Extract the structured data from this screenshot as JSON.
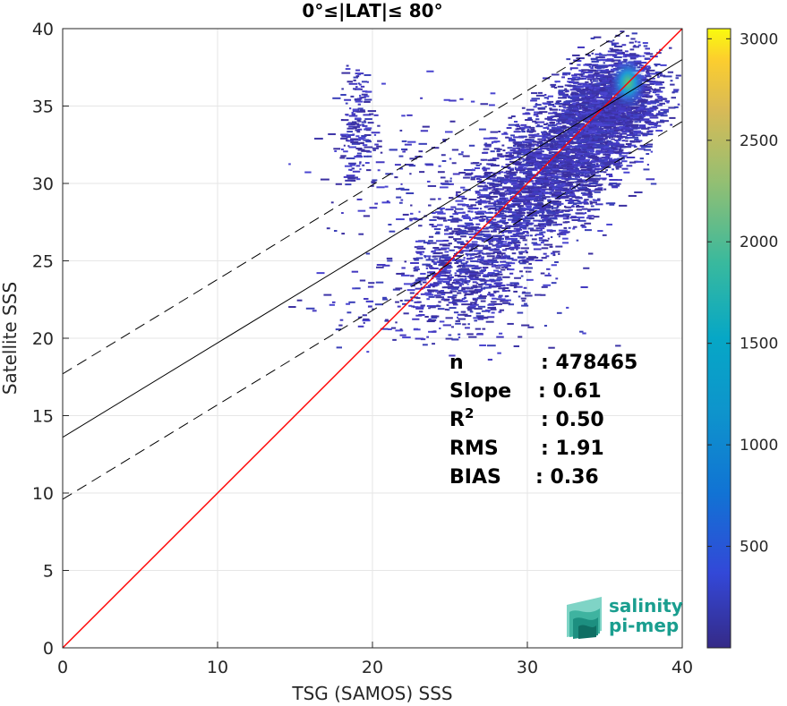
{
  "chart_data": {
    "type": "heatmap",
    "title": "0°≤|LAT|≤ 80°",
    "xlabel": "TSG (SAMOS) SSS",
    "ylabel": "Satellite SSS",
    "xlim": [
      0,
      40
    ],
    "ylim": [
      0,
      40
    ],
    "xticks": [
      "0",
      "10",
      "20",
      "30",
      "40"
    ],
    "yticks": [
      "0",
      "5",
      "10",
      "15",
      "20",
      "25",
      "30",
      "35",
      "40"
    ],
    "grid": true,
    "colorbar": {
      "range": [
        0,
        3050
      ],
      "ticks": [
        "500",
        "1000",
        "1500",
        "2000",
        "2500",
        "3000"
      ],
      "colormap": "parula"
    },
    "lines": [
      {
        "role": "one-to-one",
        "color": "#ff0000",
        "style": "solid",
        "intercept": 0,
        "slope": 1
      },
      {
        "role": "regression",
        "color": "#000000",
        "style": "solid",
        "intercept": 13.6,
        "slope": 0.61
      },
      {
        "role": "regression-upper",
        "color": "#000000",
        "style": "dashed",
        "intercept": 17.7,
        "slope": 0.61
      },
      {
        "role": "regression-lower",
        "color": "#000000",
        "style": "dashed",
        "intercept": 9.6,
        "slope": 0.61
      }
    ],
    "stats": [
      {
        "label": "n",
        "value": ": 478465"
      },
      {
        "label": "Slope",
        "value": ": 0.61"
      },
      {
        "label": "R",
        "sup": "2",
        "value": ": 0.50"
      },
      {
        "label": "RMS",
        "value": ": 1.91"
      },
      {
        "label": "BIAS",
        "value": ": 0.36"
      }
    ],
    "density_hotspot": {
      "x": 36.5,
      "y": 36.5
    }
  },
  "logo": {
    "line1": "salinity",
    "line2": "pi-mep"
  },
  "colors": {
    "one_to_one": "#ff0000",
    "logo": "#1a9e8f",
    "axis": "#262626"
  }
}
